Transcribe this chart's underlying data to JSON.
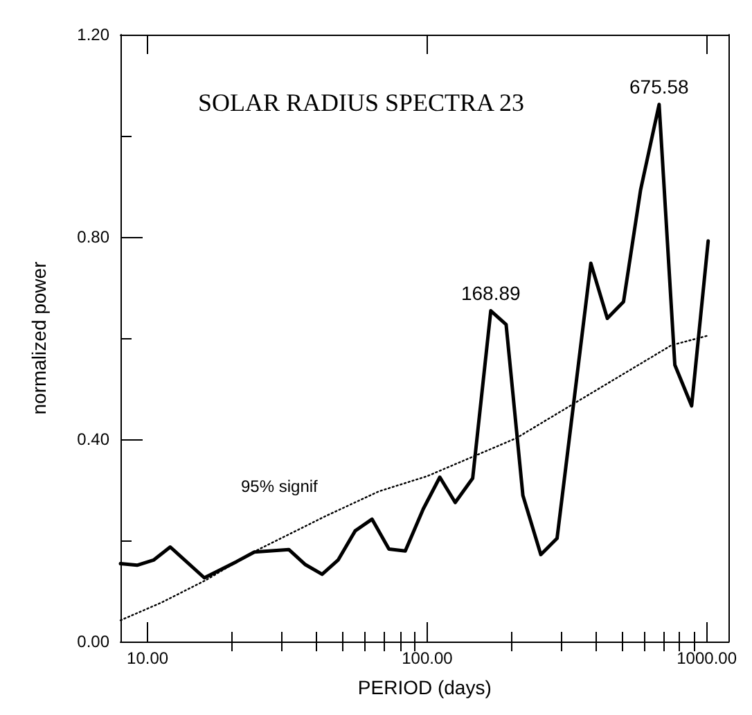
{
  "chart_data": {
    "type": "line",
    "title": "SOLAR RADIUS SPECTRA 23",
    "xlabel": "PERIOD (days)",
    "ylabel": "normalized power",
    "log": "x",
    "marker": "none",
    "grid": false,
    "xlim": [
      8,
      1200
    ],
    "ylim": [
      0,
      1.2
    ],
    "xticks": [
      {
        "value": 10,
        "label": "10.00"
      },
      {
        "value": 20,
        "label": null
      },
      {
        "value": 30,
        "label": null
      },
      {
        "value": 40,
        "label": null
      },
      {
        "value": 50,
        "label": null
      },
      {
        "value": 60,
        "label": null
      },
      {
        "value": 70,
        "label": null
      },
      {
        "value": 80,
        "label": null
      },
      {
        "value": 90,
        "label": null
      },
      {
        "value": 100,
        "label": "100.00"
      },
      {
        "value": 200,
        "label": null
      },
      {
        "value": 300,
        "label": null
      },
      {
        "value": 400,
        "label": null
      },
      {
        "value": 500,
        "label": null
      },
      {
        "value": 600,
        "label": null
      },
      {
        "value": 700,
        "label": null
      },
      {
        "value": 800,
        "label": null
      },
      {
        "value": 900,
        "label": null
      },
      {
        "value": 1000,
        "label": "1000.00"
      }
    ],
    "yticks": [
      {
        "value": 0,
        "label": "0.00"
      },
      {
        "value": 0.2,
        "label": null
      },
      {
        "value": 0.4,
        "label": "0.40"
      },
      {
        "value": 0.6,
        "label": null
      },
      {
        "value": 0.8,
        "label": "0.80"
      },
      {
        "value": 1.0,
        "label": null
      },
      {
        "value": 1.2,
        "label": "1.20"
      }
    ],
    "series": [
      {
        "color": "#000000",
        "line_style": "solid",
        "x": [
          8.0,
          9.17,
          10.5,
          12.05,
          15.96,
          20.8,
          24.1,
          32.0,
          36.7,
          42.1,
          48.0,
          55.3,
          63.5,
          73.0,
          83.5,
          96.8,
          111,
          126,
          145.5,
          168.89,
          191.6,
          220,
          255,
          291.5,
          385,
          441,
          504,
          580,
          675.58,
          769,
          883,
          1012
        ],
        "values": [
          0.154,
          0.151,
          0.161,
          0.187,
          0.126,
          0.158,
          0.177,
          0.182,
          0.152,
          0.133,
          0.161,
          0.219,
          0.242,
          0.183,
          0.179,
          0.262,
          0.325,
          0.275,
          0.323,
          0.654,
          0.627,
          0.289,
          0.172,
          0.204,
          0.748,
          0.639,
          0.672,
          0.893,
          1.062,
          0.547,
          0.466,
          0.792
        ]
      },
      {
        "color": "#000000",
        "line_style": "dotted",
        "x": [
          8.0,
          11.2,
          16.1,
          24.1,
          43.3,
          67.2,
          100,
          208,
          329,
          748,
          1012
        ],
        "values": [
          0.042,
          0.077,
          0.121,
          0.178,
          0.248,
          0.297,
          0.327,
          0.402,
          0.468,
          0.586,
          0.605
        ]
      }
    ],
    "annotations": [
      {
        "text": "168.89",
        "x": 168.89,
        "y": 0.654
      },
      {
        "text": "675.58",
        "x": 675.58,
        "y": 1.062
      },
      "95% signif"
    ]
  }
}
